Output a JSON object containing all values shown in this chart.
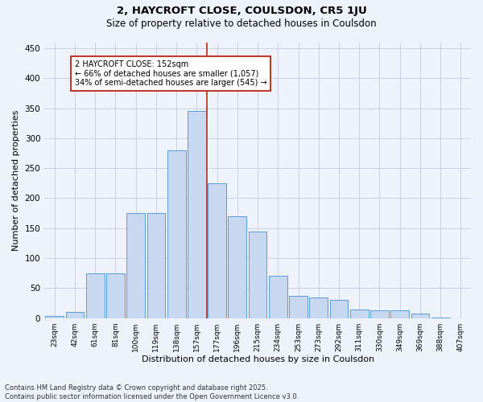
{
  "title1": "2, HAYCROFT CLOSE, COULSDON, CR5 1JU",
  "title2": "Size of property relative to detached houses in Coulsdon",
  "xlabel": "Distribution of detached houses by size in Coulsdon",
  "ylabel": "Number of detached properties",
  "categories": [
    "23sqm",
    "42sqm",
    "61sqm",
    "81sqm",
    "100sqm",
    "119sqm",
    "138sqm",
    "157sqm",
    "177sqm",
    "196sqm",
    "215sqm",
    "234sqm",
    "253sqm",
    "273sqm",
    "292sqm",
    "311sqm",
    "330sqm",
    "349sqm",
    "369sqm",
    "388sqm",
    "407sqm"
  ],
  "bar_heights": [
    3,
    11,
    75,
    75,
    175,
    175,
    280,
    345,
    225,
    170,
    145,
    70,
    37,
    35,
    30,
    15,
    13,
    13,
    7,
    1,
    0
  ],
  "bar_color": "#c8d8f0",
  "bar_edge_color": "#5b9bd5",
  "vline_color": "#c0392b",
  "annotation_title": "2 HAYCROFT CLOSE: 152sqm",
  "annotation_line1": "← 66% of detached houses are smaller (1,057)",
  "annotation_line2": "34% of semi-detached houses are larger (545) →",
  "annotation_box_color": "#c0392b",
  "annotation_bg": "#ffffff",
  "ylim": [
    0,
    460
  ],
  "yticks": [
    0,
    50,
    100,
    150,
    200,
    250,
    300,
    350,
    400,
    450
  ],
  "footer1": "Contains HM Land Registry data © Crown copyright and database right 2025.",
  "footer2": "Contains public sector information licensed under the Open Government Licence v3.0.",
  "bg_color": "#eef2fb",
  "plot_bg_color": "#eef2fb",
  "grid_color": "#c8d0e0",
  "title1_fontsize": 9.5,
  "title2_fontsize": 8.5
}
